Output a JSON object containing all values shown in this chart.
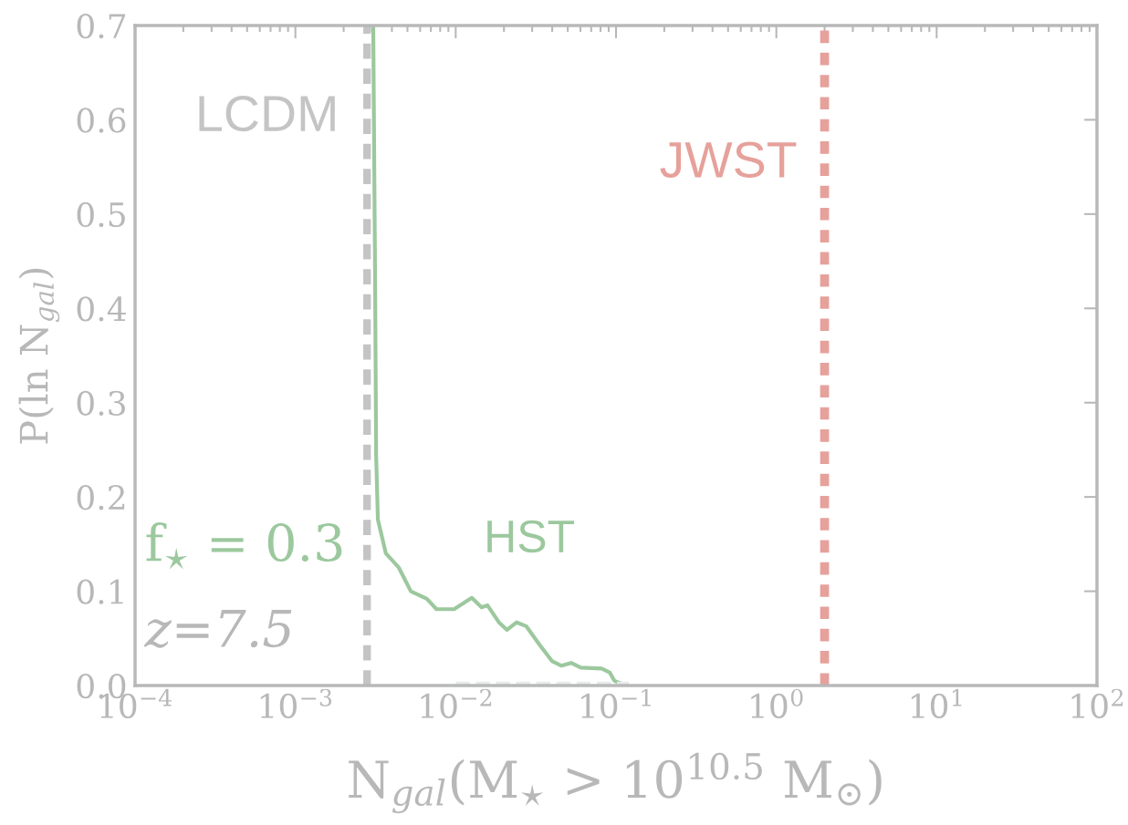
{
  "chart_data": {
    "type": "line",
    "xlabel": "N$_{gal}$(M$_{⋆}$ > 10$^{10.5}$ M$_{⊙}$)",
    "ylabel": "P(ln N$_{gal}$)",
    "log": "x",
    "grid": false,
    "legend": false,
    "xlim": [
      0.0001,
      100
    ],
    "xticks": [
      {
        "value": 0.0001,
        "label": "10$^{−4}$"
      },
      {
        "value": 0.001,
        "label": "10$^{−3}$"
      },
      {
        "value": 0.01,
        "label": "10$^{−2}$"
      },
      {
        "value": 0.1,
        "label": "10$^{−1}$"
      },
      {
        "value": 1,
        "label": "10$^{0}$"
      },
      {
        "value": 10,
        "label": "10$^{1}$"
      },
      {
        "value": 100,
        "label": "10$^{2}$"
      }
    ],
    "ylim": [
      0,
      0.7
    ],
    "yticks": [
      {
        "value": 0,
        "label": "0.0"
      },
      0.1,
      0.2,
      0.3,
      0.4,
      0.5,
      0.6,
      0.7
    ],
    "series": [
      {
        "name": "HST",
        "color": "#9cc89e",
        "line_style": "solid",
        "x": [
          0.00306,
          0.00314,
          0.00319,
          0.00327,
          0.00367,
          0.00442,
          0.00525,
          0.00661,
          0.00759,
          0.00977,
          0.0126,
          0.0145,
          0.0158,
          0.0186,
          0.0209,
          0.024,
          0.0275,
          0.0331,
          0.0398,
          0.0457,
          0.0525,
          0.0603,
          0.0813,
          0.0912,
          0.0977,
          0.115
        ],
        "values": [
          0.7,
          0.437,
          0.244,
          0.176,
          0.14,
          0.125,
          0.1,
          0.092,
          0.081,
          0.081,
          0.093,
          0.083,
          0.085,
          0.067,
          0.059,
          0.067,
          0.063,
          0.044,
          0.026,
          0.021,
          0.024,
          0.019,
          0.018,
          0.014,
          0.005,
          0
        ]
      },
      {
        "color": "#e6eaea",
        "line_style": "dashed",
        "x": [
          0.01,
          0.03,
          0.1,
          0.12
        ],
        "values": [
          0.002,
          0.002,
          0.002,
          0.002
        ]
      }
    ],
    "ref_lines": [
      {
        "axis": "x",
        "value": 0.0028,
        "label": "LCDM",
        "color": "#c4c4c4",
        "line_style": "dashed"
      },
      {
        "axis": "x",
        "value": 2,
        "label": "JWST",
        "color": "#e6a19b",
        "line_style": "dotted"
      }
    ],
    "annotations": [
      "f$_{⋆}$ = 0.3",
      "z=7.5"
    ]
  }
}
